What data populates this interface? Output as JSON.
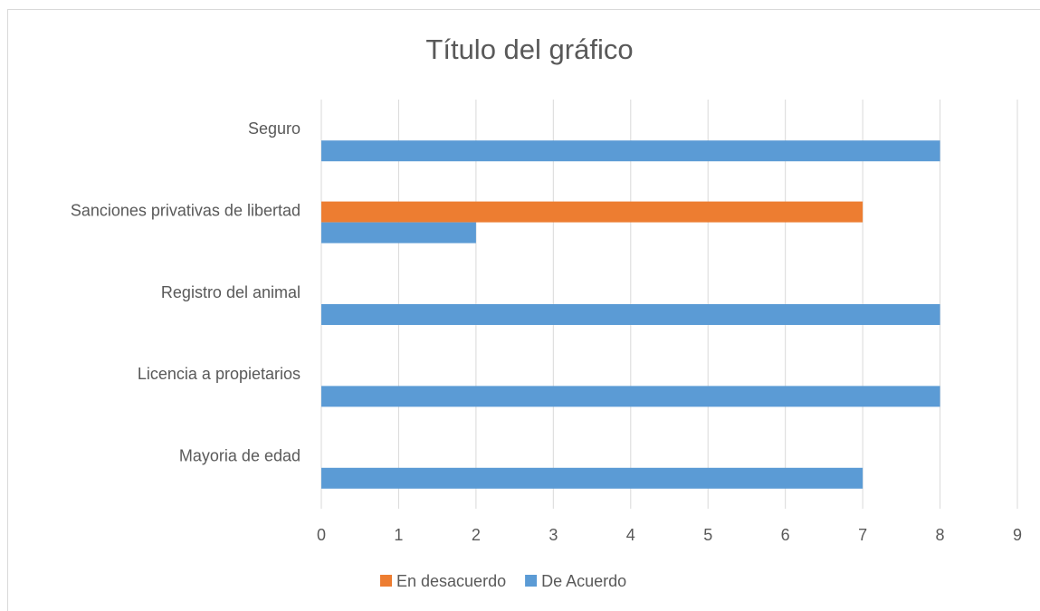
{
  "chart_data": {
    "type": "hbar",
    "title": "Título del gráfico",
    "categories": [
      "Mayoria de edad",
      "Licencia a propietarios",
      "Registro del animal",
      "Sanciones privativas de libertad",
      "Seguro"
    ],
    "series": [
      {
        "name": "En desacuerdo",
        "color": "#ed7d31",
        "values": [
          null,
          null,
          null,
          7,
          null
        ]
      },
      {
        "name": "De Acuerdo",
        "color": "#5b9bd5",
        "values": [
          7,
          8,
          8,
          2,
          8
        ]
      }
    ],
    "xlim": [
      0,
      9
    ],
    "xticks": [
      0,
      1,
      2,
      3,
      4,
      5,
      6,
      7,
      8,
      9
    ],
    "grid": true,
    "legend": "bottom"
  }
}
